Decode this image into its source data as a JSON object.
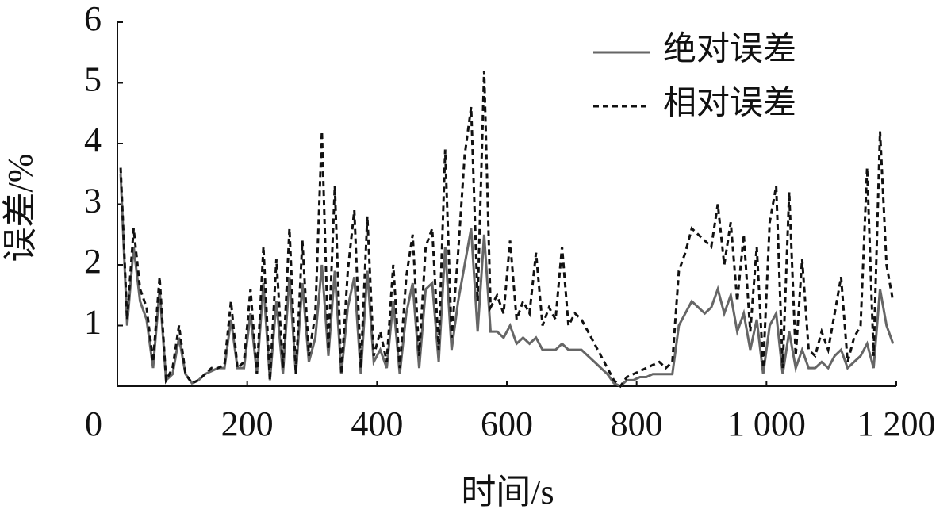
{
  "chart_data": {
    "type": "line",
    "x_label": "时间/s",
    "y_label": "误差/%",
    "xlim": [
      0,
      1200
    ],
    "xticks": [
      0,
      200,
      400,
      600,
      800,
      {
        "value": 1000,
        "label": "1 000"
      },
      {
        "value": 1200,
        "label": "1 200"
      }
    ],
    "ylim": [
      0,
      6
    ],
    "yticks": [
      1,
      2,
      3,
      4,
      5,
      6
    ],
    "legend": "upper right",
    "x": [
      5,
      15,
      25,
      35,
      45,
      55,
      65,
      75,
      85,
      95,
      105,
      115,
      125,
      135,
      145,
      155,
      165,
      175,
      185,
      195,
      205,
      215,
      225,
      235,
      245,
      255,
      265,
      275,
      285,
      295,
      305,
      315,
      325,
      335,
      345,
      355,
      365,
      375,
      385,
      395,
      405,
      415,
      425,
      435,
      445,
      455,
      465,
      475,
      485,
      495,
      505,
      515,
      525,
      535,
      545,
      555,
      565,
      575,
      585,
      595,
      605,
      615,
      625,
      635,
      645,
      655,
      665,
      675,
      685,
      695,
      705,
      715,
      725,
      735,
      745,
      755,
      765,
      775,
      785,
      795,
      805,
      815,
      825,
      835,
      845,
      855,
      865,
      875,
      885,
      895,
      905,
      915,
      925,
      935,
      945,
      955,
      965,
      975,
      985,
      995,
      1005,
      1015,
      1025,
      1035,
      1045,
      1055,
      1065,
      1075,
      1085,
      1095,
      1105,
      1115,
      1125,
      1135,
      1145,
      1155,
      1165,
      1175,
      1185,
      1195
    ],
    "series": [
      {
        "name": "绝对误差",
        "color": "#666666",
        "line_style": "solid",
        "values": [
          3.5,
          1.0,
          2.3,
          1.4,
          1.1,
          0.3,
          1.6,
          0.1,
          0.2,
          0.8,
          0.2,
          0.05,
          0.1,
          0.2,
          0.25,
          0.3,
          0.3,
          1.1,
          0.3,
          0.3,
          1.2,
          0.2,
          1.7,
          0.1,
          1.4,
          0.2,
          1.8,
          0.2,
          1.7,
          0.4,
          0.8,
          2.0,
          0.5,
          1.9,
          0.2,
          1.3,
          1.8,
          0.2,
          1.9,
          0.4,
          0.6,
          0.3,
          1.4,
          0.2,
          1.2,
          1.7,
          0.3,
          1.6,
          1.7,
          0.4,
          2.3,
          0.6,
          1.4,
          2.0,
          2.6,
          0.9,
          2.5,
          0.9,
          0.9,
          0.8,
          1.0,
          0.7,
          0.8,
          0.7,
          0.8,
          0.6,
          0.6,
          0.6,
          0.7,
          0.6,
          0.6,
          0.6,
          0.5,
          0.4,
          0.3,
          0.2,
          0.05,
          0.0,
          0.1,
          0.1,
          0.15,
          0.15,
          0.2,
          0.2,
          0.2,
          0.2,
          1.0,
          1.2,
          1.4,
          1.3,
          1.2,
          1.3,
          1.6,
          1.2,
          1.5,
          0.9,
          1.2,
          0.6,
          1.1,
          0.2,
          1.0,
          1.2,
          0.2,
          0.9,
          0.3,
          0.6,
          0.3,
          0.3,
          0.4,
          0.3,
          0.5,
          0.6,
          0.3,
          0.4,
          0.5,
          0.7,
          0.3,
          1.6,
          1.0,
          0.7
        ]
      },
      {
        "name": "相对误差",
        "color": "#111111",
        "line_style": "dashed",
        "values": [
          3.6,
          1.1,
          2.6,
          1.6,
          1.3,
          0.4,
          1.8,
          0.1,
          0.3,
          1.0,
          0.2,
          0.05,
          0.1,
          0.2,
          0.3,
          0.3,
          0.35,
          1.4,
          0.3,
          0.4,
          1.6,
          0.2,
          2.3,
          0.1,
          2.1,
          0.3,
          2.6,
          0.2,
          2.4,
          0.5,
          1.2,
          4.2,
          0.6,
          3.3,
          0.2,
          1.9,
          2.9,
          0.3,
          2.8,
          0.5,
          0.9,
          0.4,
          2.0,
          0.3,
          1.8,
          2.5,
          0.5,
          2.3,
          2.6,
          0.6,
          3.9,
          0.8,
          2.2,
          3.8,
          4.6,
          1.4,
          5.2,
          1.3,
          1.5,
          1.2,
          2.4,
          1.1,
          1.4,
          1.2,
          2.2,
          1.0,
          1.3,
          1.1,
          2.3,
          1.0,
          1.2,
          1.1,
          0.9,
          0.7,
          0.5,
          0.3,
          0.1,
          0.0,
          0.15,
          0.2,
          0.25,
          0.3,
          0.35,
          0.4,
          0.3,
          0.4,
          1.9,
          2.2,
          2.6,
          2.5,
          2.4,
          2.3,
          3.0,
          2.0,
          2.7,
          1.4,
          2.5,
          0.9,
          2.3,
          0.3,
          2.7,
          3.3,
          0.3,
          3.2,
          0.5,
          2.1,
          0.6,
          0.5,
          0.9,
          0.6,
          1.2,
          1.8,
          0.4,
          0.8,
          1.0,
          3.6,
          0.5,
          4.2,
          2.0,
          1.4
        ]
      }
    ]
  }
}
